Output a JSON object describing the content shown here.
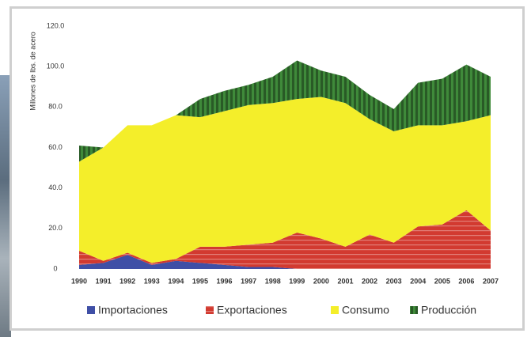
{
  "chart_data": {
    "type": "stacked_area",
    "y_label": "Millones de lbs. de acero",
    "categories": [
      "1990",
      "1991",
      "1992",
      "1993",
      "1994",
      "1995",
      "1996",
      "1997",
      "1998",
      "1999",
      "2000",
      "2001",
      "2002",
      "2003",
      "2004",
      "2005",
      "2006",
      "2007"
    ],
    "series": [
      {
        "name": "Importaciones",
        "color": "#3f4fa6",
        "values": [
          2,
          3,
          7,
          2,
          4,
          3,
          2,
          1,
          1,
          0,
          0,
          0,
          0,
          0,
          0,
          0,
          0,
          0
        ]
      },
      {
        "name": "Exportaciones",
        "color": "#d23a30",
        "values": [
          7,
          1,
          1,
          1,
          1,
          8,
          9,
          11,
          12,
          18,
          15,
          11,
          17,
          13,
          21,
          22,
          29,
          19
        ]
      },
      {
        "name": "Consumo",
        "color": "#f4ee2a",
        "values": [
          44,
          56,
          63,
          68,
          71,
          64,
          67,
          69,
          69,
          66,
          70,
          71,
          57,
          55,
          50,
          49,
          44,
          57
        ]
      },
      {
        "name": "Producción",
        "color": "#3f8a3a",
        "values": [
          8,
          0,
          0,
          0,
          0,
          9,
          10,
          10,
          13,
          19,
          13,
          13,
          12,
          11,
          21,
          23,
          28,
          19
        ]
      }
    ],
    "ylim": [
      0,
      120
    ],
    "yticks": [
      0,
      {
        "value": 20,
        "label": "20.0"
      },
      {
        "value": 40,
        "label": "40.0"
      },
      {
        "value": 60,
        "label": "60.0"
      },
      {
        "value": 80,
        "label": "80.0"
      },
      {
        "value": 100,
        "label": "100.0"
      },
      {
        "value": 120,
        "label": "120.0"
      }
    ]
  }
}
